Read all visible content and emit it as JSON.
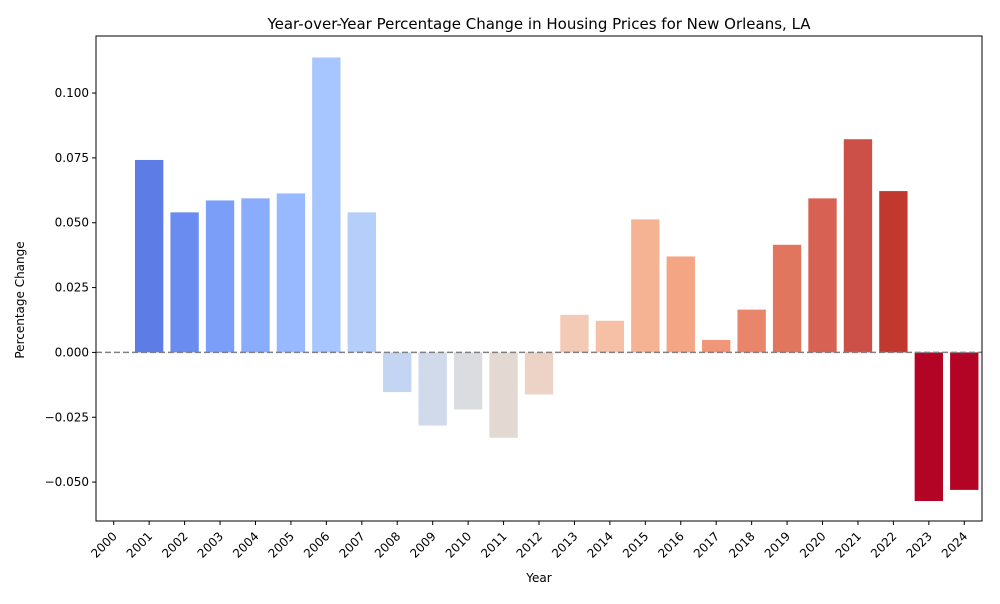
{
  "chart_data": {
    "type": "bar",
    "title": "Year-over-Year Percentage Change in Housing Prices for New Orleans, LA",
    "xlabel": "Year",
    "ylabel": "Percentage Change",
    "categories": [
      "2000",
      "2001",
      "2002",
      "2003",
      "2004",
      "2005",
      "2006",
      "2007",
      "2008",
      "2009",
      "2010",
      "2011",
      "2012",
      "2013",
      "2014",
      "2015",
      "2016",
      "2017",
      "2018",
      "2019",
      "2020",
      "2021",
      "2022",
      "2023",
      "2024"
    ],
    "values": [
      null,
      0.0742,
      0.054,
      0.0586,
      0.0594,
      0.0613,
      0.1137,
      0.054,
      -0.0153,
      -0.0282,
      -0.022,
      -0.0329,
      -0.0162,
      0.0145,
      0.0122,
      0.0513,
      0.037,
      0.0048,
      0.0165,
      0.0415,
      0.0594,
      0.0822,
      0.0622,
      -0.0573,
      -0.053
    ],
    "colors": [
      "#3b4cc0",
      "#5d7ce6",
      "#6a8bef",
      "#7b9ff9",
      "#89acfd",
      "#98b9ff",
      "#a7c5fe",
      "#b5cffa",
      "#c4d5f3",
      "#d0daea",
      "#dadce0",
      "#e4d9d2",
      "#ecd3c5",
      "#f2cab5",
      "#f5c0a5",
      "#f6b394",
      "#f4a584",
      "#f0977a",
      "#e8856b",
      "#e0765e",
      "#d76153",
      "#cc5048",
      "#c0382e",
      "#b40426",
      "#b40426"
    ],
    "ylim": [
      -0.065,
      0.122
    ],
    "yticks": [
      -0.05,
      -0.025,
      0.0,
      0.025,
      0.05,
      0.075,
      0.1
    ],
    "ytick_labels": [
      "−0.050",
      "−0.025",
      "0.000",
      "0.025",
      "0.050",
      "0.075",
      "0.100"
    ],
    "reference_line": 0,
    "grid": false
  }
}
